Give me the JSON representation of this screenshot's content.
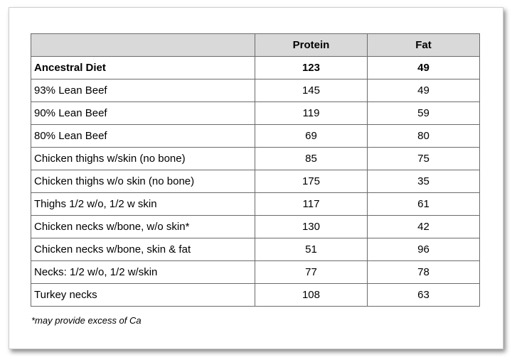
{
  "table": {
    "headers": [
      "",
      "Protein",
      "Fat"
    ],
    "rows": [
      {
        "name": "Ancestral Diet",
        "protein": "123",
        "fat": "49",
        "bold": true
      },
      {
        "name": "93% Lean Beef",
        "protein": "145",
        "fat": "49"
      },
      {
        "name": "90% Lean Beef",
        "protein": "119",
        "fat": "59"
      },
      {
        "name": "80% Lean Beef",
        "protein": "69",
        "fat": "80"
      },
      {
        "name": "Chicken thighs w/skin (no bone)",
        "protein": "85",
        "fat": "75"
      },
      {
        "name": "Chicken thighs w/o skin (no bone)",
        "protein": "175",
        "fat": "35"
      },
      {
        "name": "Thighs 1/2 w/o, 1/2 w skin",
        "protein": "117",
        "fat": "61"
      },
      {
        "name": "Chicken necks w/bone, w/o skin*",
        "protein": "130",
        "fat": "42"
      },
      {
        "name": "Chicken necks w/bone, skin & fat",
        "protein": "51",
        "fat": "96"
      },
      {
        "name": "Necks: 1/2 w/o, 1/2 w/skin",
        "protein": "77",
        "fat": "78"
      },
      {
        "name": "Turkey necks",
        "protein": "108",
        "fat": "63"
      }
    ]
  },
  "footnote": "*may provide excess of Ca"
}
